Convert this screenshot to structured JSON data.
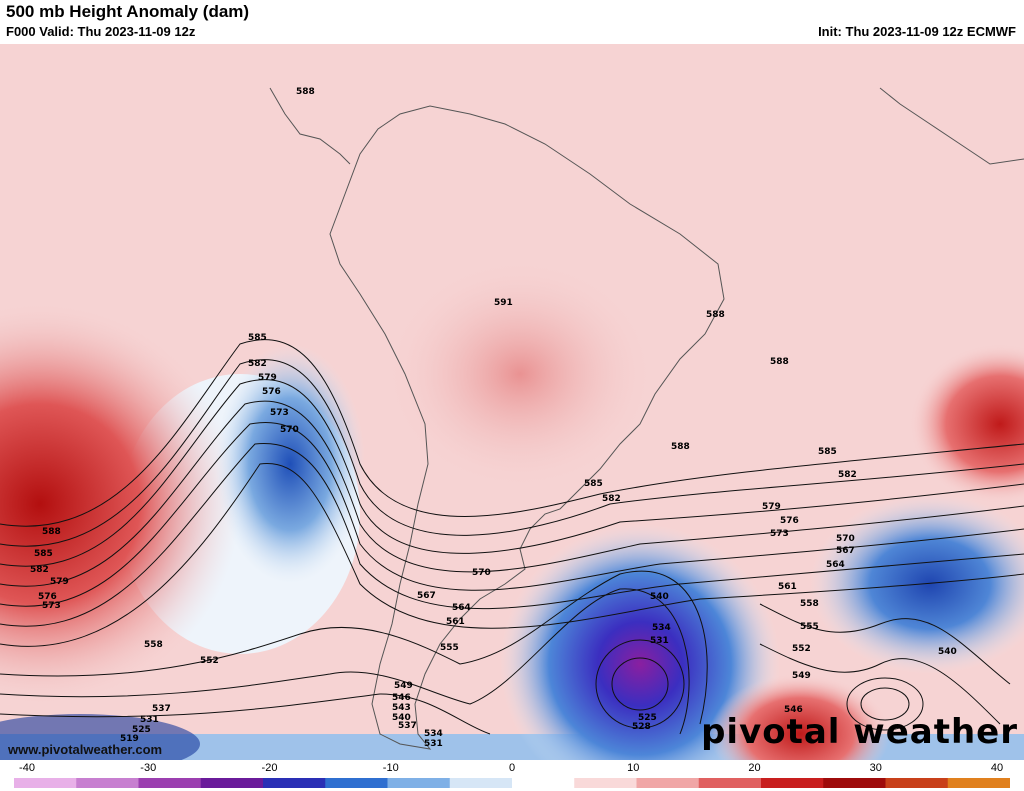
{
  "header": {
    "title": "500 mb Height Anomaly (dam)",
    "valid": "F000 Valid: Thu 2023-11-09 12z",
    "init": "Init: Thu 2023-11-09 12z ECMWF"
  },
  "watermark": "pivotal weather",
  "site": "www.pivotalweather.com",
  "colorbar": {
    "ticks": [
      "-40",
      "-30",
      "-20",
      "-10",
      "0",
      "10",
      "20",
      "30",
      "40"
    ],
    "min": -40,
    "max": 40,
    "colors": [
      "#e8b0e8",
      "#c77fd0",
      "#9b3fb0",
      "#6a1b9a",
      "#2a2fb5",
      "#2f6fd0",
      "#7fb0e6",
      "#d6e6f6",
      "#ffffff",
      "#f9d9d9",
      "#f0a6a6",
      "#e06060",
      "#c81e1e",
      "#9e0b0b",
      "#c8401a",
      "#e0801e"
    ]
  },
  "contour_labels": [
    "588",
    "585",
    "582",
    "579",
    "576",
    "573",
    "570",
    "591",
    "588",
    "588",
    "588",
    "585",
    "582",
    "579",
    "576",
    "573",
    "570",
    "567",
    "564",
    "561",
    "558",
    "555",
    "552",
    "549",
    "546",
    "540",
    "534",
    "531",
    "528",
    "525",
    "585",
    "582",
    "588",
    "585",
    "582",
    "579",
    "576",
    "573",
    "570",
    "567",
    "564",
    "561",
    "558",
    "555",
    "552",
    "549",
    "546",
    "543",
    "540",
    "537",
    "534",
    "531",
    "537",
    "531",
    "525",
    "519",
    "558",
    "552",
    "540"
  ]
}
